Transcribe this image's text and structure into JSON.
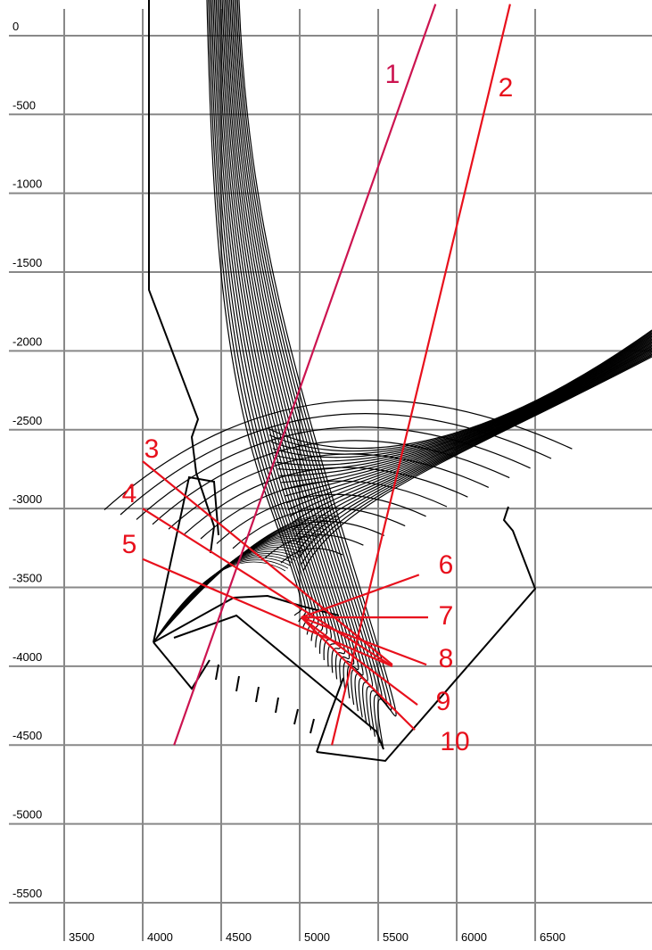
{
  "chart_data": {
    "type": "line",
    "xlim": [
      3091,
      7244
    ],
    "ylim": [
      -5800,
      226
    ],
    "xticks": [
      3500,
      4000,
      4500,
      5000,
      5500,
      6000,
      6500
    ],
    "yticks": [
      0,
      -500,
      -1000,
      -1500,
      -2000,
      -2500,
      -3000,
      -3500,
      -4000,
      -4500,
      -5000,
      -5500
    ],
    "grid": true,
    "series": [
      {
        "name": "1",
        "color": "#cc1450",
        "x": [
          4200,
          5865
        ],
        "values": [
          -4500,
          200
        ]
      },
      {
        "name": "2",
        "color": "#e8101c",
        "x": [
          5205,
          6340
        ],
        "values": [
          -4500,
          200
        ]
      },
      {
        "name": "3",
        "color": "#e8101c",
        "x": [
          4000,
          5590
        ],
        "values": [
          -2700,
          -3990
        ]
      },
      {
        "name": "4",
        "color": "#e8101c",
        "x": [
          4000,
          5590
        ],
        "values": [
          -3000,
          -4000
        ]
      },
      {
        "name": "5",
        "color": "#e8101c",
        "x": [
          4000,
          5590
        ],
        "values": [
          -3320,
          -4000
        ]
      },
      {
        "name": "6",
        "color": "#e8101c",
        "x": [
          5010,
          5760
        ],
        "values": [
          -3690,
          -3420
        ]
      },
      {
        "name": "7",
        "color": "#e8101c",
        "x": [
          5010,
          5818
        ],
        "values": [
          -3690,
          -3690
        ]
      },
      {
        "name": "8",
        "color": "#e8101c",
        "x": [
          5010,
          5807
        ],
        "values": [
          -3690,
          -3990
        ]
      },
      {
        "name": "9",
        "color": "#e8101c",
        "x": [
          5010,
          5750
        ],
        "values": [
          -3690,
          -4245
        ]
      },
      {
        "name": "10",
        "color": "#e8101c",
        "x": [
          5010,
          5733
        ],
        "values": [
          -3690,
          -4403
        ]
      }
    ]
  }
}
